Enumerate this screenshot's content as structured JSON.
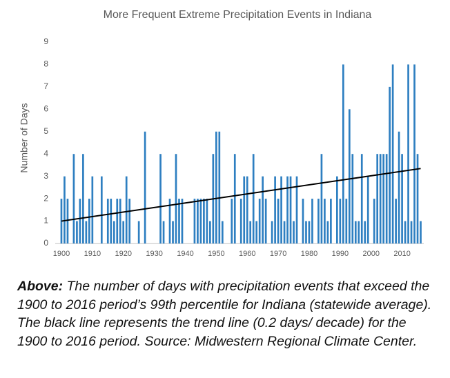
{
  "chart_data": {
    "type": "bar",
    "title": "More Frequent Extreme Precipitation Events in Indiana",
    "y_label": "Number of Days",
    "x": [
      1900,
      1901,
      1902,
      1903,
      1904,
      1905,
      1906,
      1907,
      1908,
      1909,
      1910,
      1911,
      1912,
      1913,
      1914,
      1915,
      1916,
      1917,
      1918,
      1919,
      1920,
      1921,
      1922,
      1923,
      1924,
      1925,
      1926,
      1927,
      1928,
      1929,
      1930,
      1931,
      1932,
      1933,
      1934,
      1935,
      1936,
      1937,
      1938,
      1939,
      1940,
      1941,
      1942,
      1943,
      1944,
      1945,
      1946,
      1947,
      1948,
      1949,
      1950,
      1951,
      1952,
      1953,
      1954,
      1955,
      1956,
      1957,
      1958,
      1959,
      1960,
      1961,
      1962,
      1963,
      1964,
      1965,
      1966,
      1967,
      1968,
      1969,
      1970,
      1971,
      1972,
      1973,
      1974,
      1975,
      1976,
      1977,
      1978,
      1979,
      1980,
      1981,
      1982,
      1983,
      1984,
      1985,
      1986,
      1987,
      1988,
      1989,
      1990,
      1991,
      1992,
      1993,
      1994,
      1995,
      1996,
      1997,
      1998,
      1999,
      2000,
      2001,
      2002,
      2003,
      2004,
      2005,
      2006,
      2007,
      2008,
      2009,
      2010,
      2011,
      2012,
      2013,
      2014,
      2015,
      2016
    ],
    "values": [
      2,
      3,
      2,
      0,
      4,
      1,
      2,
      4,
      1,
      2,
      3,
      0,
      0,
      3,
      0,
      2,
      2,
      1,
      2,
      2,
      1,
      3,
      2,
      0,
      0,
      1,
      0,
      5,
      0,
      0,
      0,
      0,
      4,
      1,
      0,
      2,
      1,
      4,
      2,
      2,
      0,
      0,
      0,
      2,
      2,
      2,
      2,
      2,
      1,
      4,
      5,
      5,
      1,
      0,
      0,
      2,
      4,
      0,
      2,
      3,
      3,
      1,
      4,
      1,
      2,
      3,
      2,
      0,
      1,
      3,
      2,
      3,
      1,
      3,
      3,
      1,
      3,
      0,
      2,
      1,
      1,
      2,
      0,
      2,
      4,
      2,
      1,
      2,
      0,
      3,
      2,
      8,
      2,
      6,
      4,
      1,
      1,
      4,
      1,
      3,
      0,
      2,
      4,
      4,
      4,
      4,
      7,
      8,
      2,
      5,
      4,
      1,
      8,
      1,
      8,
      4,
      1
    ],
    "color": "#2e7fc1",
    "trend": {
      "x": [
        1900,
        2016
      ],
      "values": [
        1.0,
        3.35
      ],
      "color": "#000000"
    },
    "xlim": [
      1898,
      2017
    ],
    "xticks": [
      1900,
      1910,
      1920,
      1930,
      1940,
      1950,
      1960,
      1970,
      1980,
      1990,
      2000,
      2010
    ],
    "ylim": [
      0,
      9
    ],
    "yticks": [
      0,
      1,
      2,
      3,
      4,
      5,
      6,
      7,
      8,
      9
    ]
  },
  "caption": {
    "label": "Above:",
    "text": "The number of days with precipitation events that exceed the 1900 to 2016 period’s 99th percentile for Indiana (statewide average). The black line represents the trend line (0.2 days/ decade) for the 1900 to 2016 period. Source: Midwestern Regional Climate Center."
  }
}
